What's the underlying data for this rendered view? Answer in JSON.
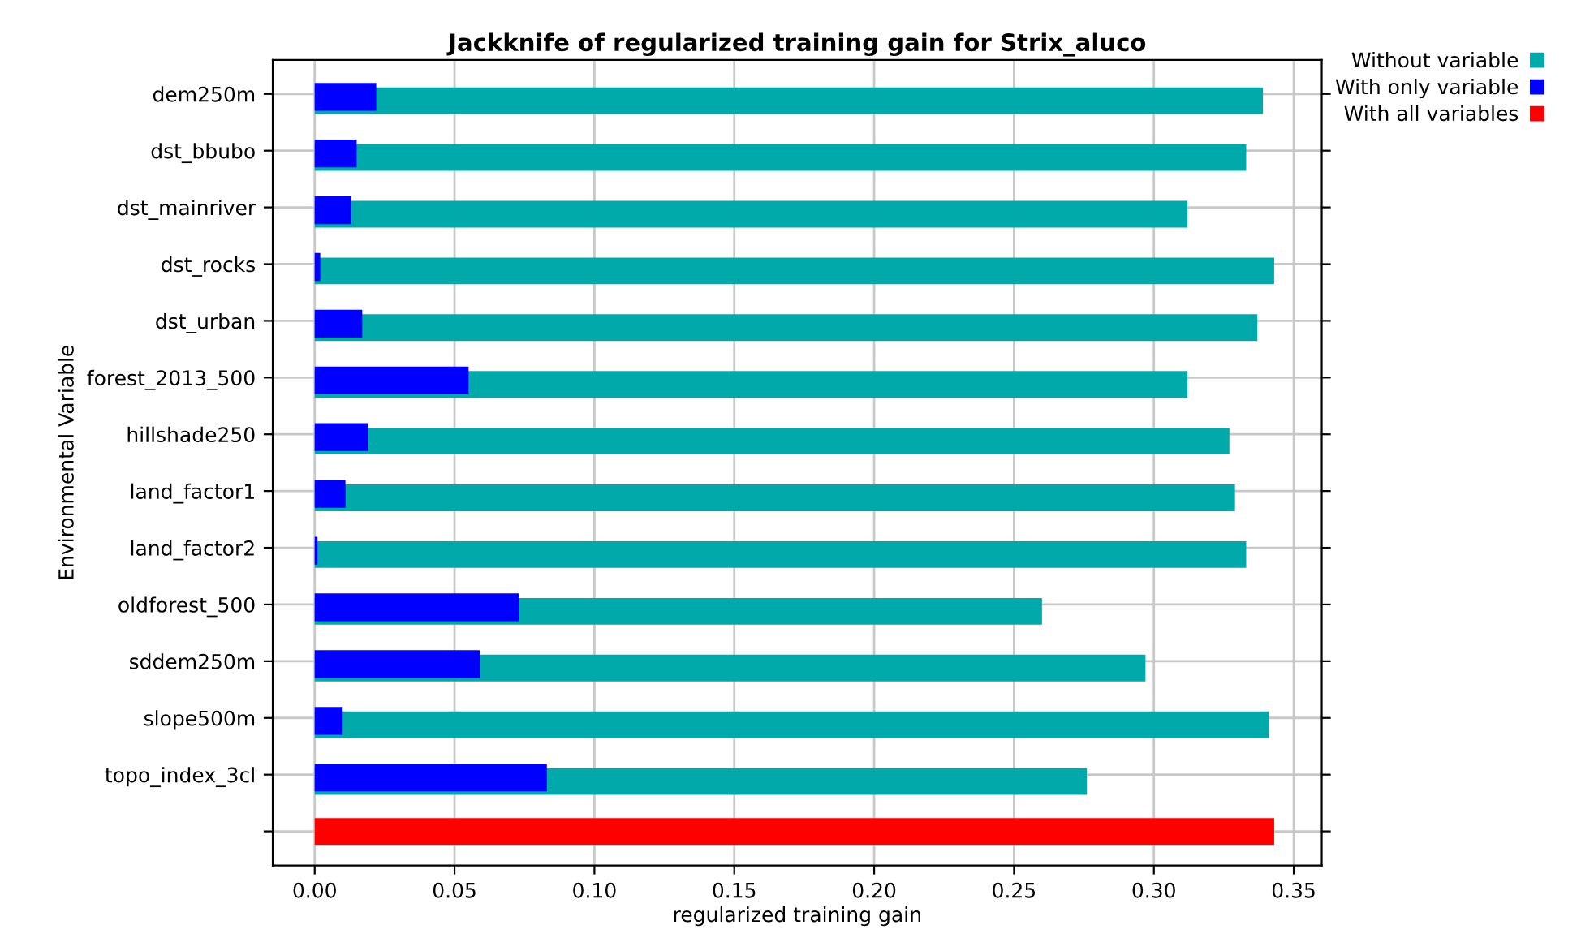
{
  "chart_data": {
    "type": "bar",
    "orientation": "horizontal",
    "title": "Jackknife of regularized training gain for Strix_aluco",
    "xlabel": "regularized training gain",
    "ylabel": "Environmental Variable",
    "categories": [
      "dem250m",
      "dst_bbubo",
      "dst_mainriver",
      "dst_rocks",
      "dst_urban",
      "forest_2013_500",
      "hillshade250",
      "land_factor1",
      "land_factor2",
      "oldforest_500",
      "sddem250m",
      "slope500m",
      "topo_index_3cl",
      null
    ],
    "series": [
      {
        "name": "Without variable",
        "color": "#00aaaa",
        "values": [
          0.339,
          0.333,
          0.312,
          0.343,
          0.337,
          0.312,
          0.327,
          0.329,
          0.333,
          0.26,
          0.297,
          0.341,
          0.276,
          null
        ]
      },
      {
        "name": "With only variable",
        "color": "#0000ff",
        "values": [
          0.022,
          0.015,
          0.013,
          0.002,
          0.017,
          0.055,
          0.019,
          0.011,
          0.001,
          0.073,
          0.059,
          0.01,
          0.083,
          null
        ]
      },
      {
        "name": "With all variables",
        "color": "#ff0000",
        "values": [
          null,
          null,
          null,
          null,
          null,
          null,
          null,
          null,
          null,
          null,
          null,
          null,
          null,
          0.343
        ]
      }
    ],
    "xlim": [
      -0.015,
      0.36
    ],
    "xticks": [
      {
        "value": 0,
        "label": "0.00"
      },
      {
        "value": 0.05,
        "label": "0.05"
      },
      {
        "value": 0.1,
        "label": "0.10"
      },
      {
        "value": 0.15,
        "label": "0.15"
      },
      {
        "value": 0.2,
        "label": "0.20"
      },
      {
        "value": 0.25,
        "label": "0.25"
      },
      {
        "value": 0.3,
        "label": "0.30"
      },
      {
        "value": 0.35,
        "label": "0.35"
      }
    ],
    "grid": true,
    "legend": "top right"
  }
}
